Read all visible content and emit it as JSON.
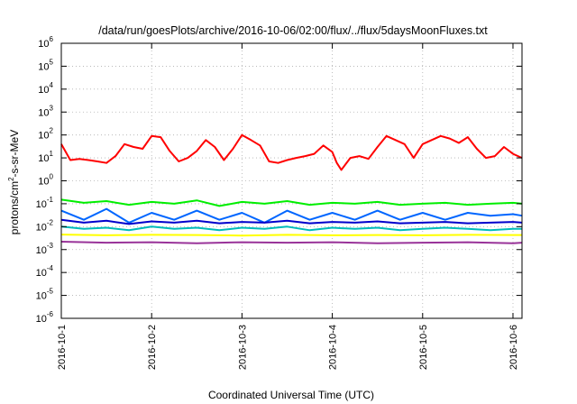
{
  "chart_data": {
    "type": "line",
    "title": "/data/run/goesPlots/archive/2016-10-06/02:00/flux/../flux/5daysMoonFluxes.txt",
    "xlabel": "Coordinated Universal Time (UTC)",
    "ylabel": "protons/cm2-s-sr-MeV",
    "ylabel_parts": {
      "before": "protons/cm",
      "sup": "2",
      "after": "-s-sr-MeV"
    },
    "yscale": "log",
    "ylim": [
      1e-06,
      1000000.0
    ],
    "xlim": [
      0,
      5.1
    ],
    "grid": true,
    "y_ticks": [
      {
        "base": "10",
        "exp": "-6",
        "value": -6
      },
      {
        "base": "10",
        "exp": "-5",
        "value": -5
      },
      {
        "base": "10",
        "exp": "-4",
        "value": -4
      },
      {
        "base": "10",
        "exp": "-3",
        "value": -3
      },
      {
        "base": "10",
        "exp": "-2",
        "value": -2
      },
      {
        "base": "10",
        "exp": "-1",
        "value": -1
      },
      {
        "base": "10",
        "exp": "0",
        "value": 0
      },
      {
        "base": "10",
        "exp": "1",
        "value": 1
      },
      {
        "base": "10",
        "exp": "2",
        "value": 2
      },
      {
        "base": "10",
        "exp": "3",
        "value": 3
      },
      {
        "base": "10",
        "exp": "4",
        "value": 4
      },
      {
        "base": "10",
        "exp": "5",
        "value": 5
      },
      {
        "base": "10",
        "exp": "6",
        "value": 6
      }
    ],
    "x_ticks": [
      {
        "label": "2016-10-1",
        "value": 0
      },
      {
        "label": "2016-10-2",
        "value": 1
      },
      {
        "label": "2016-10-3",
        "value": 2
      },
      {
        "label": "2016-10-4",
        "value": 3
      },
      {
        "label": "2016-10-5",
        "value": 4
      },
      {
        "label": "2016-10-6",
        "value": 5
      }
    ],
    "series": [
      {
        "color": "#ff0000",
        "x": [
          0,
          0.1,
          0.2,
          0.3,
          0.4,
          0.5,
          0.6,
          0.7,
          0.8,
          0.9,
          1.0,
          1.1,
          1.2,
          1.3,
          1.4,
          1.5,
          1.6,
          1.7,
          1.8,
          1.9,
          2.0,
          2.1,
          2.2,
          2.3,
          2.4,
          2.5,
          2.6,
          2.7,
          2.8,
          2.9,
          3.0,
          3.05,
          3.1,
          3.2,
          3.3,
          3.4,
          3.5,
          3.6,
          3.7,
          3.8,
          3.9,
          4.0,
          4.1,
          4.2,
          4.3,
          4.4,
          4.5,
          4.6,
          4.7,
          4.8,
          4.9,
          5.0,
          5.1
        ],
        "y": [
          40,
          8,
          9,
          8,
          7,
          6,
          12,
          40,
          30,
          25,
          90,
          80,
          20,
          7,
          10,
          20,
          60,
          30,
          8,
          25,
          100,
          60,
          35,
          7,
          6,
          8,
          10,
          12,
          15,
          35,
          18,
          6,
          3,
          10,
          12,
          9,
          30,
          90,
          60,
          40,
          10,
          40,
          60,
          90,
          70,
          45,
          80,
          25,
          10,
          12,
          30,
          15,
          10
        ]
      },
      {
        "color": "#00ee00",
        "x": [
          0,
          0.25,
          0.5,
          0.75,
          1.0,
          1.25,
          1.5,
          1.75,
          2.0,
          2.25,
          2.5,
          2.75,
          3.0,
          3.25,
          3.5,
          3.75,
          4.0,
          4.25,
          4.5,
          4.75,
          5.0,
          5.1
        ],
        "y": [
          0.15,
          0.11,
          0.13,
          0.09,
          0.12,
          0.1,
          0.14,
          0.08,
          0.12,
          0.1,
          0.13,
          0.09,
          0.11,
          0.1,
          0.12,
          0.09,
          0.1,
          0.11,
          0.09,
          0.1,
          0.11,
          0.1
        ]
      },
      {
        "color": "#0066ff",
        "x": [
          0,
          0.25,
          0.5,
          0.75,
          1.0,
          1.25,
          1.5,
          1.75,
          2.0,
          2.25,
          2.5,
          2.75,
          3.0,
          3.25,
          3.5,
          3.75,
          4.0,
          4.25,
          4.5,
          4.75,
          5.0,
          5.1
        ],
        "y": [
          0.05,
          0.02,
          0.06,
          0.015,
          0.04,
          0.02,
          0.05,
          0.02,
          0.04,
          0.015,
          0.05,
          0.02,
          0.04,
          0.02,
          0.05,
          0.02,
          0.04,
          0.02,
          0.04,
          0.03,
          0.035,
          0.03
        ]
      },
      {
        "color": "#00bbbb",
        "x": [
          0,
          0.25,
          0.5,
          0.75,
          1.0,
          1.25,
          1.5,
          1.75,
          2.0,
          2.25,
          2.5,
          2.75,
          3.0,
          3.25,
          3.5,
          3.75,
          4.0,
          4.25,
          4.5,
          4.75,
          5.0,
          5.1
        ],
        "y": [
          0.01,
          0.008,
          0.009,
          0.007,
          0.01,
          0.008,
          0.009,
          0.007,
          0.009,
          0.008,
          0.01,
          0.007,
          0.009,
          0.008,
          0.009,
          0.007,
          0.008,
          0.009,
          0.008,
          0.007,
          0.008,
          0.008
        ]
      },
      {
        "color": "#0000cc",
        "x": [
          0,
          0.25,
          0.5,
          0.75,
          1.0,
          1.25,
          1.5,
          1.75,
          2.0,
          2.25,
          2.5,
          2.75,
          3.0,
          3.25,
          3.5,
          3.75,
          4.0,
          4.25,
          4.5,
          4.75,
          5.0,
          5.1
        ],
        "y": [
          0.02,
          0.015,
          0.018,
          0.013,
          0.017,
          0.015,
          0.018,
          0.014,
          0.016,
          0.015,
          0.018,
          0.014,
          0.016,
          0.015,
          0.017,
          0.014,
          0.015,
          0.016,
          0.014,
          0.015,
          0.016,
          0.015
        ]
      },
      {
        "color": "#ffff00",
        "x": [
          0,
          0.5,
          1.0,
          1.5,
          2.0,
          2.5,
          3.0,
          3.5,
          4.0,
          4.5,
          5.0,
          5.1
        ],
        "y": [
          0.0045,
          0.0042,
          0.0044,
          0.0043,
          0.0041,
          0.0044,
          0.0042,
          0.0043,
          0.0042,
          0.0044,
          0.0043,
          0.0043
        ]
      },
      {
        "color": "#993399",
        "x": [
          0,
          0.5,
          1.0,
          1.5,
          2.0,
          2.5,
          3.0,
          3.5,
          4.0,
          4.5,
          5.0,
          5.1
        ],
        "y": [
          0.0022,
          0.002,
          0.0021,
          0.0019,
          0.0021,
          0.002,
          0.0021,
          0.0019,
          0.002,
          0.0021,
          0.0019,
          0.002
        ]
      }
    ]
  }
}
